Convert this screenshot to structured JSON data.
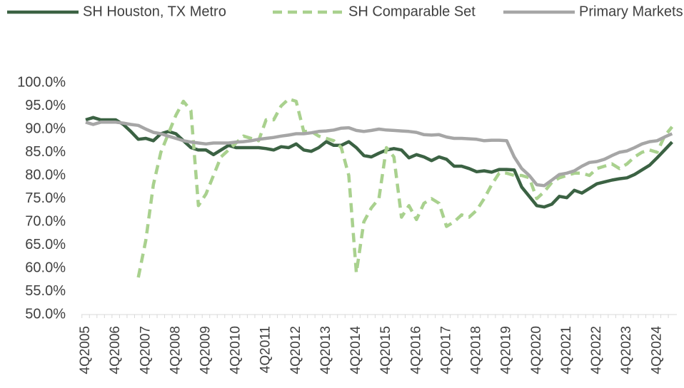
{
  "chart_data": {
    "type": "line",
    "categories": [
      "4Q2005",
      null,
      null,
      null,
      "4Q2006",
      null,
      null,
      null,
      "4Q2007",
      null,
      null,
      null,
      "4Q2008",
      null,
      null,
      null,
      "4Q2009",
      null,
      null,
      null,
      "4Q2010",
      null,
      null,
      null,
      "4Q2011",
      null,
      null,
      null,
      "4Q2012",
      null,
      null,
      null,
      "4Q2013",
      null,
      null,
      null,
      "4Q2014",
      null,
      null,
      null,
      "4Q2015",
      null,
      null,
      null,
      "4Q2016",
      null,
      null,
      null,
      "4Q2017",
      null,
      null,
      null,
      "4Q2018",
      null,
      null,
      null,
      "4Q2019",
      null,
      null,
      null,
      "4Q2020",
      null,
      null,
      null,
      "4Q2021",
      null,
      null,
      null,
      "4Q2022",
      null,
      null,
      null,
      "4Q2023",
      null,
      null,
      null,
      "4Q2024",
      null,
      null
    ],
    "series": [
      {
        "name": "SH Houston, TX Metro",
        "color": "#3b6243",
        "dash": false,
        "values": [
          92,
          92.5,
          92,
          92,
          92,
          91,
          89.5,
          87.8,
          88,
          87.5,
          89,
          89.5,
          89,
          87.5,
          86,
          85.5,
          85.5,
          84.5,
          85.5,
          86.5,
          86,
          86,
          86,
          86,
          85.8,
          85.5,
          86.2,
          86,
          86.8,
          85.5,
          85.2,
          86,
          87.3,
          86.5,
          86.5,
          87.3,
          86,
          84.3,
          84,
          84.8,
          85.5,
          85.8,
          85.5,
          83.8,
          84.5,
          84,
          83.2,
          84,
          83.5,
          82,
          82,
          81.5,
          80.8,
          81,
          80.7,
          81.3,
          81.3,
          81.2,
          77.5,
          75.5,
          73.5,
          73.2,
          73.8,
          75.5,
          75.2,
          76.8,
          76.2,
          77.2,
          78.2,
          78.6,
          79,
          79.3,
          79.5,
          80.2,
          81.2,
          82.2,
          83.8,
          85.5,
          87.2
        ]
      },
      {
        "name": "SH Comparable Set",
        "color": "#a9d18e",
        "dash": true,
        "values": [
          null,
          null,
          null,
          null,
          null,
          null,
          null,
          58,
          66,
          78,
          85,
          89,
          93,
          96,
          94,
          73.5,
          76,
          80,
          84,
          85.5,
          87,
          88.5,
          88,
          87.5,
          92,
          92,
          95,
          96.5,
          96,
          89.5,
          89.5,
          88.5,
          88,
          87.5,
          86,
          80,
          59,
          70,
          73,
          75,
          86,
          84,
          71,
          73.5,
          70.5,
          74,
          75,
          74,
          69,
          70,
          71.5,
          71,
          72.5,
          75,
          78,
          80.5,
          80.5,
          80,
          80,
          79.5,
          75,
          76.5,
          78.5,
          79.5,
          80,
          80.5,
          80.5,
          80,
          81.5,
          82,
          82.5,
          81.5,
          82.5,
          84,
          85,
          85.5,
          85,
          88.5,
          90.5
        ]
      },
      {
        "name": "Primary Markets",
        "color": "#a6a6a6",
        "dash": false,
        "values": [
          91.5,
          91,
          91.5,
          91.5,
          91.5,
          91.3,
          91,
          90.8,
          90,
          89.3,
          89,
          88.5,
          88,
          87.5,
          87.2,
          87,
          86.8,
          87,
          87,
          87,
          87.2,
          87.3,
          87.5,
          87.8,
          88,
          88.2,
          88.5,
          88.7,
          89,
          89,
          89.2,
          89.5,
          89.6,
          89.8,
          90.2,
          90.3,
          89.7,
          89.5,
          89.7,
          90,
          89.8,
          89.7,
          89.6,
          89.5,
          89.3,
          88.8,
          88.7,
          88.8,
          88.3,
          88,
          88,
          87.9,
          87.8,
          87.5,
          87.6,
          87.6,
          87.5,
          84,
          81.5,
          80,
          78,
          77.8,
          79,
          80.2,
          80.5,
          81,
          82,
          82.8,
          83,
          83.5,
          84.3,
          85,
          85.3,
          86,
          86.8,
          87.3,
          87.5,
          88.3,
          89
        ]
      }
    ],
    "ylim": [
      50,
      100
    ],
    "yticks": [
      {
        "value": 50,
        "label": "50.0%"
      },
      {
        "value": 55,
        "label": "55.0%"
      },
      {
        "value": 60,
        "label": "60.0%"
      },
      {
        "value": 65,
        "label": "65.0%"
      },
      {
        "value": 70,
        "label": "70.0%"
      },
      {
        "value": 75,
        "label": "75.0%"
      },
      {
        "value": 80,
        "label": "80.0%"
      },
      {
        "value": 85,
        "label": "85.0%"
      },
      {
        "value": 90,
        "label": "90.0%"
      },
      {
        "value": 95,
        "label": "95.0%"
      },
      {
        "value": 100,
        "label": "100.0%"
      }
    ],
    "grid": false,
    "legend": "top"
  }
}
